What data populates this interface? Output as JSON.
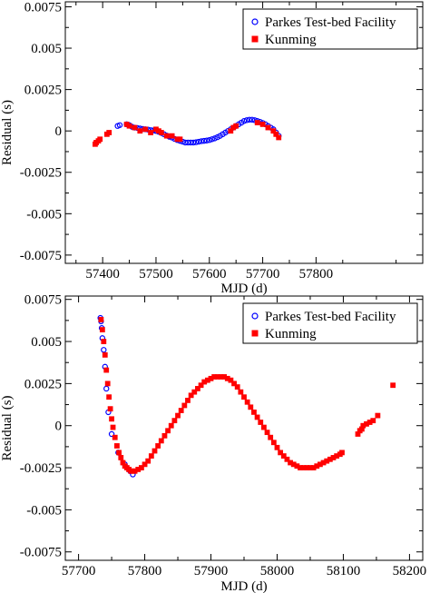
{
  "chart_data": [
    {
      "type": "scatter",
      "xlabel": "MJD (d)",
      "ylabel": "Residual (s)",
      "xlim": [
        57330,
        58000
      ],
      "ylim": [
        -0.008,
        0.0078
      ],
      "xticks": [
        57400,
        57500,
        57600,
        57700,
        57800
      ],
      "xtick_labels": [
        "57400",
        "57500",
        "57600",
        "57700",
        "57800"
      ],
      "yticks": [
        0.0075,
        0.005,
        0.0025,
        0,
        -0.0025,
        -0.005,
        -0.0075
      ],
      "ytick_labels": [
        "0.0075",
        "0.005",
        "0.0025",
        "0",
        "-0.0025",
        "-0.005",
        "-0.0075"
      ],
      "legend_position": "top-right",
      "series": [
        {
          "name": "Parkes Test-bed Facility",
          "marker": "open-circle",
          "color": "#0000ff",
          "x": [
            57428,
            57432,
            57445,
            57450,
            57455,
            57460,
            57465,
            57470,
            57475,
            57480,
            57485,
            57490,
            57495,
            57500,
            57505,
            57510,
            57515,
            57520,
            57525,
            57530,
            57535,
            57540,
            57545,
            57550,
            57555,
            57560,
            57565,
            57570,
            57575,
            57580,
            57585,
            57590,
            57595,
            57600,
            57605,
            57610,
            57615,
            57620,
            57625,
            57630,
            57635,
            57640,
            57645,
            57650,
            57655,
            57660,
            57665,
            57670,
            57675,
            57680,
            57685,
            57690,
            57695,
            57700,
            57705,
            57710,
            57715,
            57720,
            57725,
            57730
          ],
          "y": [
            0.0003,
            0.00035,
            0.0004,
            0.00035,
            0.00025,
            0.0002,
            0.00018,
            0.00015,
            0.00012,
            0.0001,
            8e-05,
            5e-05,
            3e-05,
            0.0,
            -5e-05,
            -0.00012,
            -0.0002,
            -0.00028,
            -0.00035,
            -0.0004,
            -0.00048,
            -0.00055,
            -0.0006,
            -0.00065,
            -0.0007,
            -0.0007,
            -0.0007,
            -0.0007,
            -0.00068,
            -0.00065,
            -0.00062,
            -0.0006,
            -0.00058,
            -0.00055,
            -0.0005,
            -0.00045,
            -0.00038,
            -0.0003,
            -0.0002,
            -0.0001,
            0.0,
            0.0001,
            0.0002,
            0.0003,
            0.0004,
            0.0005,
            0.0006,
            0.00065,
            0.00068,
            0.00068,
            0.00065,
            0.0006,
            0.00055,
            0.00048,
            0.0004,
            0.0003,
            0.0002,
            0.0001,
            -0.0001,
            -0.0003
          ]
        },
        {
          "name": "Kunming",
          "marker": "filled-square",
          "color": "#ff0000",
          "x": [
            57386,
            57388,
            57392,
            57395,
            57408,
            57412,
            57445,
            57450,
            57460,
            57470,
            57480,
            57490,
            57500,
            57505,
            57510,
            57520,
            57530,
            57540,
            57545,
            57640,
            57645,
            57650,
            57690,
            57700,
            57710,
            57720,
            57725,
            57730
          ],
          "y": [
            -0.0008,
            -0.0007,
            -0.0006,
            -0.0005,
            -0.0002,
            -0.0001,
            0.0004,
            0.0003,
            0.0002,
            0.0,
            0.0001,
            -0.0001,
            0.0001,
            0.0,
            -0.0001,
            -0.0003,
            -0.0003,
            -0.0005,
            -0.0005,
            0.0,
            0.0002,
            0.0003,
            0.0005,
            0.0004,
            0.0002,
            0.0,
            -0.0002,
            -0.0004
          ]
        }
      ]
    },
    {
      "type": "scatter",
      "xlabel": "MJD (d)",
      "ylabel": "Residual (s)",
      "xlim": [
        57680,
        58220
      ],
      "ylim": [
        -0.008,
        0.0077
      ],
      "xticks": [
        57700,
        57800,
        57900,
        58000,
        58100,
        58200
      ],
      "xtick_labels": [
        "57700",
        "57800",
        "57900",
        "58000",
        "58100",
        "58200"
      ],
      "yticks": [
        0.0075,
        0.005,
        0.0025,
        0,
        -0.0025,
        -0.005,
        -0.0075
      ],
      "ytick_labels": [
        "0.0075",
        "0.005",
        "0.0025",
        "0",
        "-0.0025",
        "-0.005",
        "-0.0075"
      ],
      "legend_position": "top-right",
      "series": [
        {
          "name": "Parkes Test-bed Facility",
          "marker": "open-circle",
          "color": "#0000ff",
          "x": [
            57733,
            57734,
            57735,
            57736,
            57738,
            57740,
            57742,
            57745,
            57750,
            57760,
            57770,
            57778,
            57782
          ],
          "y": [
            0.0064,
            0.0062,
            0.0058,
            0.0052,
            0.0045,
            0.0035,
            0.0022,
            0.0008,
            -0.0005,
            -0.0016,
            -0.0023,
            -0.0027,
            -0.0029
          ]
        },
        {
          "name": "Kunming",
          "marker": "filled-square",
          "color": "#ff0000",
          "x": [
            57734,
            57736,
            57738,
            57740,
            57742,
            57744,
            57746,
            57748,
            57750,
            57752,
            57755,
            57758,
            57761,
            57764,
            57767,
            57770,
            57773,
            57776,
            57779,
            57782,
            57785,
            57790,
            57795,
            57800,
            57805,
            57810,
            57815,
            57820,
            57825,
            57830,
            57835,
            57840,
            57845,
            57850,
            57855,
            57860,
            57865,
            57870,
            57875,
            57880,
            57885,
            57890,
            57895,
            57900,
            57905,
            57910,
            57915,
            57920,
            57925,
            57930,
            57935,
            57940,
            57945,
            57950,
            57955,
            57960,
            57965,
            57970,
            57975,
            57980,
            57985,
            57990,
            57995,
            58000,
            58005,
            58010,
            58015,
            58020,
            58025,
            58030,
            58035,
            58040,
            58045,
            58050,
            58055,
            58060,
            58065,
            58070,
            58075,
            58080,
            58085,
            58090,
            58095,
            58098,
            58122,
            58125,
            58128,
            58130,
            58135,
            58140,
            58145,
            58152,
            58175
          ],
          "y": [
            0.0063,
            0.0057,
            0.005,
            0.0042,
            0.0033,
            0.0025,
            0.0017,
            0.001,
            0.0004,
            -0.0001,
            -0.0007,
            -0.0012,
            -0.0016,
            -0.0019,
            -0.0022,
            -0.0024,
            -0.0025,
            -0.0026,
            -0.0027,
            -0.0027,
            -0.0027,
            -0.0026,
            -0.0025,
            -0.0023,
            -0.0021,
            -0.0018,
            -0.0015,
            -0.0012,
            -0.0009,
            -0.0006,
            -0.0003,
            0.0,
            0.0003,
            0.0006,
            0.0009,
            0.0012,
            0.0015,
            0.0018,
            0.002,
            0.0022,
            0.0024,
            0.0026,
            0.0027,
            0.0028,
            0.0029,
            0.0029,
            0.0029,
            0.0029,
            0.0028,
            0.0027,
            0.0025,
            0.0023,
            0.002,
            0.0017,
            0.0014,
            0.0011,
            0.0008,
            0.0005,
            0.0002,
            -0.0001,
            -0.0004,
            -0.0007,
            -0.001,
            -0.0013,
            -0.0016,
            -0.0018,
            -0.002,
            -0.0022,
            -0.0023,
            -0.0024,
            -0.0025,
            -0.0025,
            -0.0025,
            -0.0025,
            -0.0025,
            -0.0024,
            -0.0023,
            -0.0022,
            -0.0021,
            -0.002,
            -0.0019,
            -0.0018,
            -0.0017,
            -0.0016,
            -0.0005,
            -0.0003,
            -0.0002,
            0.0,
            0.0001,
            0.0002,
            0.0003,
            0.0006,
            0.0024
          ]
        }
      ]
    }
  ]
}
